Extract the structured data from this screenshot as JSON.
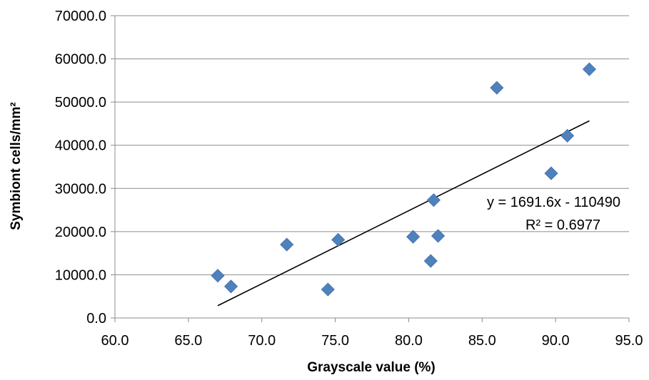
{
  "chart_data": {
    "type": "scatter",
    "title": "",
    "xlabel": "Grayscale value (%)",
    "ylabel": "Symbiont cells/mm²",
    "xlim": [
      60,
      95
    ],
    "ylim": [
      0,
      70000
    ],
    "x_ticks": [
      "60.0",
      "65.0",
      "70.0",
      "75.0",
      "80.0",
      "85.0",
      "90.0",
      "95.0"
    ],
    "y_ticks": [
      "0.0",
      "10000.0",
      "20000.0",
      "30000.0",
      "40000.0",
      "50000.0",
      "60000.0",
      "70000.0"
    ],
    "grid": "horizontal",
    "legend": "none",
    "marker_color": "#4F81BD",
    "trendline_color": "#000000",
    "series": [
      {
        "points": [
          {
            "x": 67.0,
            "y": 9800
          },
          {
            "x": 67.9,
            "y": 7300
          },
          {
            "x": 71.7,
            "y": 17000
          },
          {
            "x": 74.5,
            "y": 6600
          },
          {
            "x": 75.2,
            "y": 18100
          },
          {
            "x": 80.3,
            "y": 18800
          },
          {
            "x": 81.5,
            "y": 13200
          },
          {
            "x": 81.7,
            "y": 27300
          },
          {
            "x": 82.0,
            "y": 19000
          },
          {
            "x": 86.0,
            "y": 53300
          },
          {
            "x": 89.7,
            "y": 33500
          },
          {
            "x": 90.8,
            "y": 42200
          },
          {
            "x": 92.3,
            "y": 57600
          }
        ]
      }
    ],
    "trendline": {
      "slope": 1691.6,
      "intercept": -110490,
      "x_start": 67.0,
      "x_end": 92.3,
      "equation": "y = 1691.6x - 110490",
      "r_squared": "R² = 0.6977"
    }
  }
}
